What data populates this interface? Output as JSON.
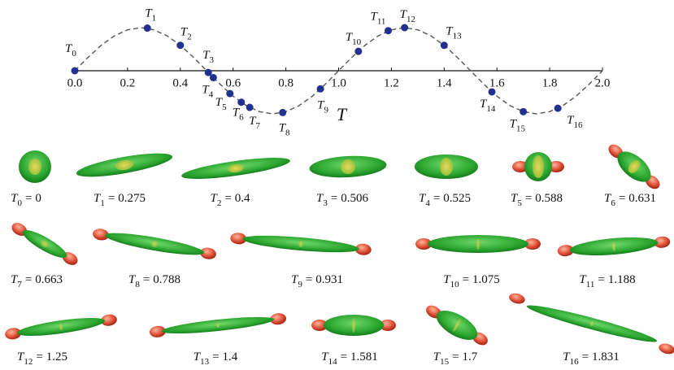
{
  "chart_data": {
    "type": "line",
    "x_label": "T",
    "xlim": [
      0,
      2
    ],
    "ylim": [
      -1,
      1
    ],
    "xticks": [
      {
        "value": 0,
        "label": "0.0"
      },
      {
        "value": 0.2,
        "label": "0.2"
      },
      {
        "value": 0.4,
        "label": "0.4"
      },
      {
        "value": 0.6,
        "label": "0.6"
      },
      {
        "value": 0.8,
        "label": "0.8"
      },
      {
        "value": 1,
        "label": "1.0"
      },
      {
        "value": 1.2,
        "label": "1.2"
      },
      {
        "value": 1.4,
        "label": "1.4"
      },
      {
        "value": 1.6,
        "label": "1.6"
      },
      {
        "value": 1.8,
        "label": "1.8"
      },
      {
        "value": 2,
        "label": "2.0"
      }
    ],
    "curve": {
      "color": "#555555",
      "dashed": true,
      "x": [
        0,
        0.05,
        0.1,
        0.15,
        0.2,
        0.25,
        0.3,
        0.35,
        0.4,
        0.45,
        0.5,
        0.55,
        0.6,
        0.65,
        0.7,
        0.75,
        0.8,
        0.85,
        0.9,
        0.95,
        1,
        1.05,
        1.1,
        1.15,
        1.2,
        1.25,
        1.3,
        1.35,
        1.4,
        1.45,
        1.5,
        1.55,
        1.6,
        1.65,
        1.7,
        1.75,
        1.8,
        1.85,
        1.9,
        1.95,
        2
      ],
      "values": [
        0,
        0.31,
        0.59,
        0.81,
        0.95,
        1,
        0.95,
        0.81,
        0.59,
        0.31,
        0,
        -0.31,
        -0.59,
        -0.81,
        -0.95,
        -1,
        -0.95,
        -0.81,
        -0.59,
        -0.31,
        0,
        0.31,
        0.59,
        0.81,
        0.95,
        1,
        0.95,
        0.81,
        0.59,
        0.31,
        0,
        -0.31,
        -0.59,
        -0.81,
        -0.95,
        -1,
        -0.95,
        -0.81,
        -0.59,
        -0.31,
        0
      ]
    },
    "points": {
      "color": "#22318f",
      "symbol": "T",
      "subscripts": [
        "0",
        "1",
        "2",
        "3",
        "4",
        "5",
        "6",
        "7",
        "8",
        "9",
        "10",
        "11",
        "12",
        "13",
        "14",
        "15",
        "16"
      ],
      "x": [
        0,
        0.275,
        0.4,
        0.506,
        0.525,
        0.588,
        0.631,
        0.663,
        0.788,
        0.931,
        1.075,
        1.188,
        1.25,
        1.4,
        1.581,
        1.7,
        1.831
      ],
      "values": [
        0,
        0.99,
        0.59,
        -0.04,
        -0.16,
        -0.53,
        -0.73,
        -0.85,
        -0.97,
        -0.42,
        0.45,
        0.93,
        1,
        0.59,
        -0.49,
        -0.95,
        -0.87
      ]
    },
    "caption_equals": "="
  }
}
